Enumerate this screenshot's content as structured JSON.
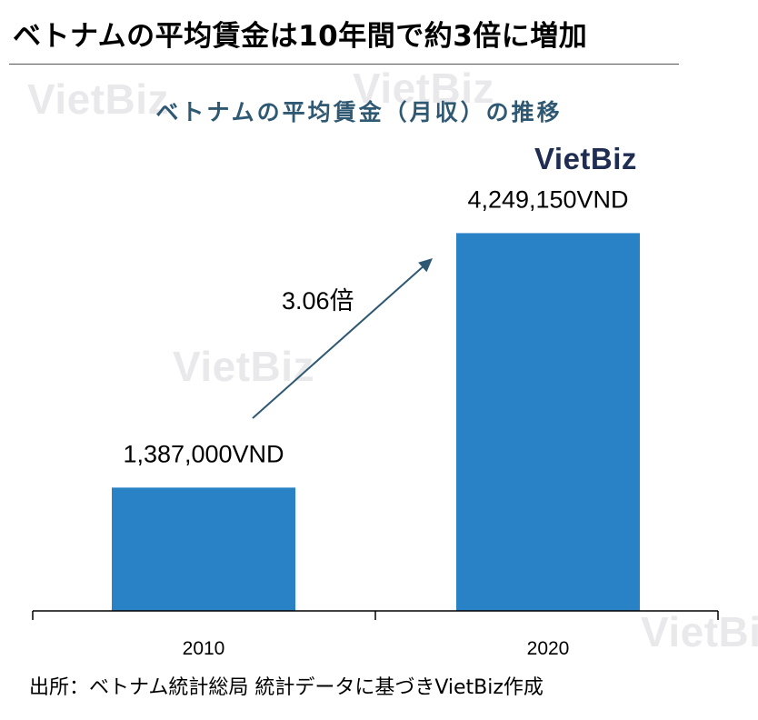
{
  "headline": "ベトナムの平均賃金は10年間で約3倍に増加",
  "brand": "VietBiz",
  "watermark_text": "VietBiz",
  "source": "出所：ベトナム統計総局 統計データに基づきVietBiz作成",
  "colors": {
    "bar": "#2a82c6",
    "arrow": "#2f5872",
    "title": "#2f5872",
    "brand": "#1f2d52"
  },
  "chart_data": {
    "type": "bar",
    "title": "ベトナムの平均賃金（月収）の推移",
    "categories": [
      "2010",
      "2020"
    ],
    "values": [
      1387000,
      4249150
    ],
    "value_labels": [
      "1,387,000VND",
      "4,249,150VND"
    ],
    "unit": "VND",
    "growth_annotation": "3.06倍",
    "ylim": [
      0,
      5000000
    ],
    "grid": false,
    "legend": "none"
  }
}
